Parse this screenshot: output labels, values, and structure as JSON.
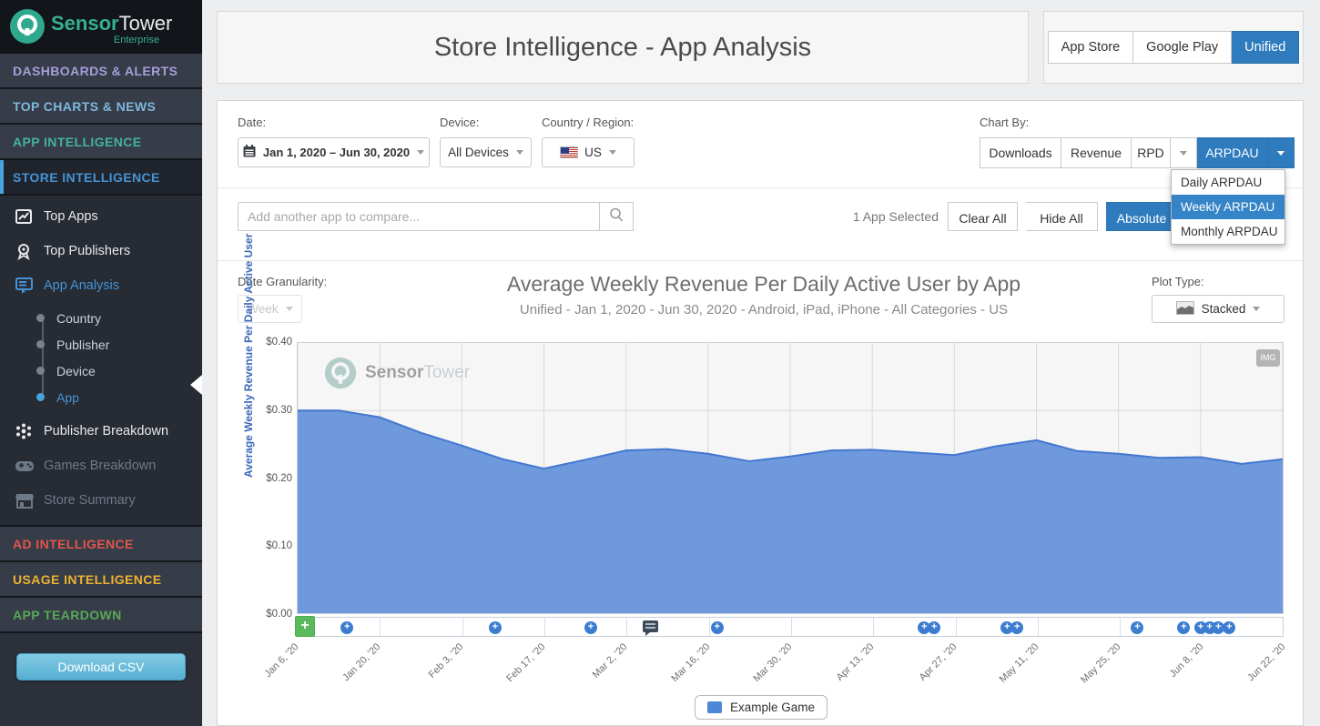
{
  "sidebar": {
    "brand": {
      "bold": "Sensor",
      "light": "Tower",
      "edition": "Enterprise"
    },
    "sections_top": [
      {
        "label": "DASHBOARDS & ALERTS",
        "color": "#a89ddb"
      },
      {
        "label": "TOP CHARTS & NEWS",
        "color": "#7db8dc"
      },
      {
        "label": "APP INTELLIGENCE",
        "color": "#44b39b"
      },
      {
        "label": "STORE INTELLIGENCE",
        "color": "#4593d6"
      }
    ],
    "store_menu": [
      {
        "label": "Top Apps"
      },
      {
        "label": "Top Publishers"
      },
      {
        "label": "App Analysis"
      }
    ],
    "app_analysis_children": [
      {
        "label": "Country"
      },
      {
        "label": "Publisher"
      },
      {
        "label": "Device"
      },
      {
        "label": "App"
      }
    ],
    "store_menu2": [
      {
        "label": "Publisher Breakdown"
      },
      {
        "label": "Games Breakdown"
      },
      {
        "label": "Store Summary"
      }
    ],
    "sections_bottom": [
      {
        "label": "AD INTELLIGENCE",
        "color": "#e0564a"
      },
      {
        "label": "USAGE INTELLIGENCE",
        "color": "#eeb230"
      },
      {
        "label": "APP TEARDOWN",
        "color": "#57a957"
      }
    ],
    "download_csv_label": "Download CSV"
  },
  "header": {
    "title": "Store Intelligence - App Analysis",
    "store_toggle": {
      "app_store": "App Store",
      "google_play": "Google Play",
      "unified": "Unified",
      "active": "Unified"
    }
  },
  "filters": {
    "date": {
      "label": "Date:",
      "value": "Jan 1, 2020 – Jun 30, 2020"
    },
    "device": {
      "label": "Device:",
      "value": "All Devices"
    },
    "country": {
      "label": "Country / Region:",
      "value": "US"
    },
    "chart_by": {
      "label": "Chart By:",
      "downloads": "Downloads",
      "revenue": "Revenue",
      "rpd": "RPD",
      "arpdau": "ARPDAU",
      "active": "ARPDAU",
      "menu_items": [
        "Daily ARPDAU",
        "Weekly ARPDAU",
        "Monthly ARPDAU"
      ],
      "menu_selected": "Weekly ARPDAU"
    }
  },
  "toolbar": {
    "search_placeholder": "Add another app to compare...",
    "selected_count": "1 App Selected",
    "clear_all": "Clear All",
    "hide_all": "Hide All",
    "absolute": "Absolute"
  },
  "chart_header": {
    "granularity_label": "Date Granularity:",
    "granularity_value": "Week",
    "plot_type_label": "Plot Type:",
    "plot_type_value": "Stacked"
  },
  "chart_data": {
    "type": "area",
    "stacking": "stacked",
    "title": "Average Weekly Revenue Per Daily Active User by App",
    "subtitle": "Unified - Jan 1, 2020 - Jun 30, 2020 - Android, iPad, iPhone - All Categories - US",
    "ylabel": "Average Weekly Revenue Per Daily Active User",
    "ylabel_color": "#3a67b8",
    "ylim": [
      0,
      0.4
    ],
    "yticks": [
      "$0.00",
      "$0.10",
      "$0.20",
      "$0.30",
      "$0.40"
    ],
    "xtick_labels": [
      "Jan 6, '20",
      "Jan 20, '20",
      "Feb 3, '20",
      "Feb 17, '20",
      "Mar 2, '20",
      "Mar 16, '20",
      "Mar 30, '20",
      "Apr 13, '20",
      "Apr 27, '20",
      "May 11, '20",
      "May 25, '20",
      "Jun 8, '20",
      "Jun 22, '20"
    ],
    "grid": true,
    "grid_color": "#d9d9d9",
    "plot_bg": "#f6f6f6",
    "legend_position": "bottom",
    "series": [
      {
        "name": "Example Game",
        "color": "#6e99dc",
        "line_color": "#4377d0",
        "x": [
          "Jan 6, 2020",
          "Jan 13, 2020",
          "Jan 20, 2020",
          "Jan 27, 2020",
          "Feb 3, 2020",
          "Feb 10, 2020",
          "Feb 17, 2020",
          "Feb 24, 2020",
          "Mar 2, 2020",
          "Mar 9, 2020",
          "Mar 16, 2020",
          "Mar 23, 2020",
          "Mar 30, 2020",
          "Apr 6, 2020",
          "Apr 13, 2020",
          "Apr 20, 2020",
          "Apr 27, 2020",
          "May 4, 2020",
          "May 11, 2020",
          "May 18, 2020",
          "May 25, 2020",
          "Jun 1, 2020",
          "Jun 8, 2020",
          "Jun 15, 2020",
          "Jun 22, 2020"
        ],
        "values": [
          0.3,
          0.3,
          0.29,
          0.267,
          0.248,
          0.228,
          0.214,
          0.227,
          0.241,
          0.243,
          0.236,
          0.225,
          0.232,
          0.241,
          0.242,
          0.238,
          0.234,
          0.247,
          0.256,
          0.24,
          0.236,
          0.23,
          0.231,
          0.221,
          0.228
        ]
      }
    ],
    "legend": [
      {
        "label": "Example Game",
        "color": "#4e86d8"
      }
    ],
    "watermark": {
      "bold": "Sensor",
      "light": "Tower"
    },
    "img_button_label": "IMG",
    "events": [
      {
        "pos": 0.05,
        "type": "add"
      },
      {
        "pos": 0.2,
        "type": "add"
      },
      {
        "pos": 0.297,
        "type": "add"
      },
      {
        "pos": 0.357,
        "type": "comment"
      },
      {
        "pos": 0.425,
        "type": "add"
      },
      {
        "pos": 0.635,
        "type": "add"
      },
      {
        "pos": 0.645,
        "type": "add"
      },
      {
        "pos": 0.719,
        "type": "add"
      },
      {
        "pos": 0.729,
        "type": "add"
      },
      {
        "pos": 0.851,
        "type": "add"
      },
      {
        "pos": 0.898,
        "type": "add"
      },
      {
        "pos": 0.915,
        "type": "add"
      },
      {
        "pos": 0.924,
        "type": "add"
      },
      {
        "pos": 0.933,
        "type": "add"
      },
      {
        "pos": 0.944,
        "type": "add"
      }
    ]
  }
}
